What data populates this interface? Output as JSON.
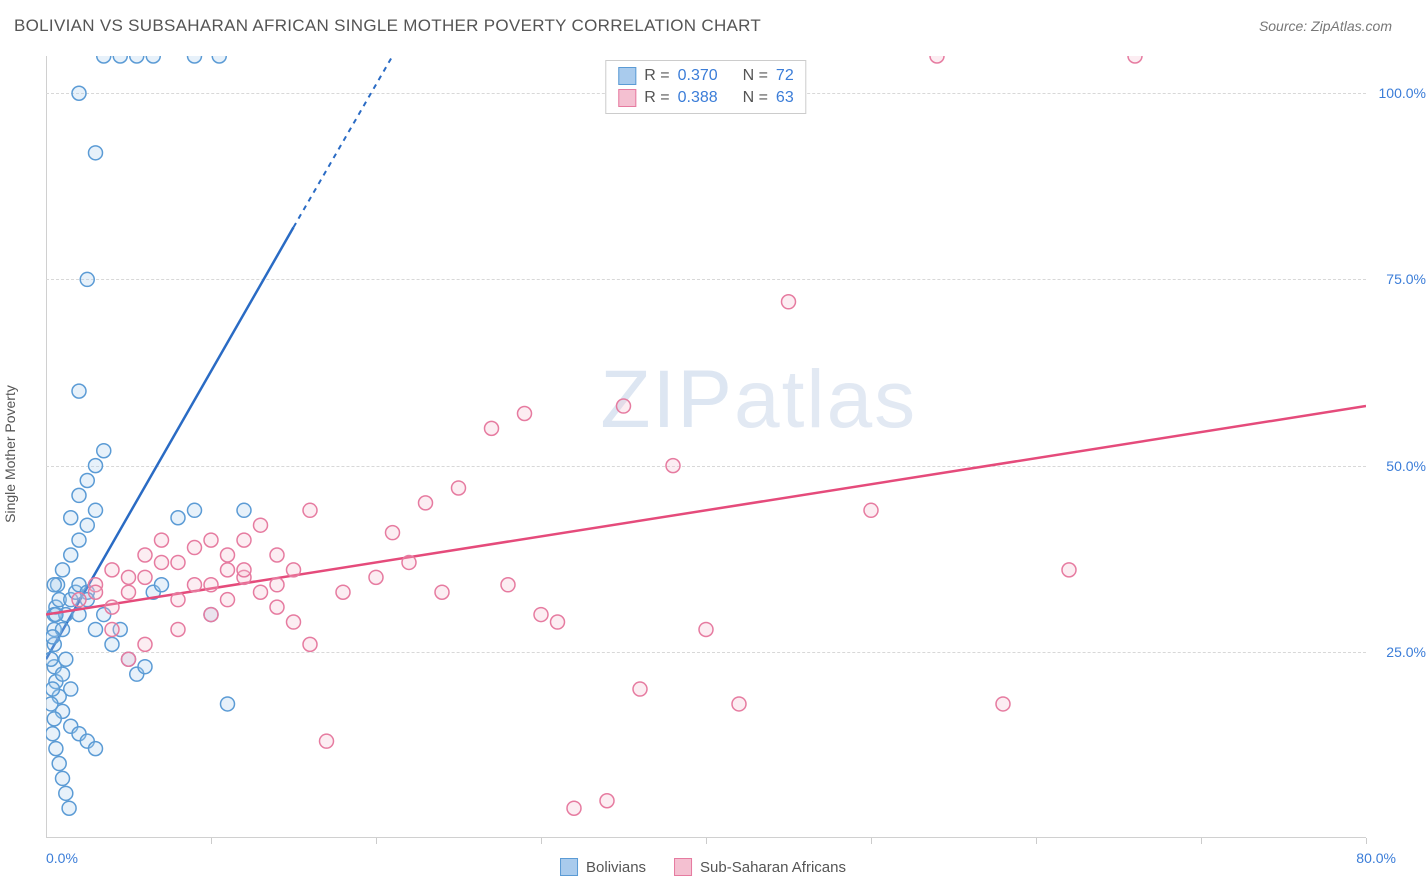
{
  "title": "BOLIVIAN VS SUBSAHARAN AFRICAN SINGLE MOTHER POVERTY CORRELATION CHART",
  "source": "Source: ZipAtlas.com",
  "y_axis_label": "Single Mother Poverty",
  "watermark_bold": "ZIP",
  "watermark_light": "atlas",
  "chart": {
    "type": "scatter",
    "xlim": [
      0,
      80
    ],
    "ylim": [
      0,
      105
    ],
    "x_start_label": "0.0%",
    "x_end_label": "80.0%",
    "y_ticks": [
      {
        "v": 25,
        "label": "25.0%"
      },
      {
        "v": 50,
        "label": "50.0%"
      },
      {
        "v": 75,
        "label": "75.0%"
      },
      {
        "v": 100,
        "label": "100.0%"
      }
    ],
    "x_tick_positions": [
      10,
      20,
      30,
      40,
      50,
      60,
      70,
      80
    ],
    "grid_color": "#d8d8d8",
    "background_color": "#ffffff",
    "marker_radius": 7,
    "marker_stroke_width": 1.5,
    "marker_fill_opacity": 0.28,
    "trendline_width": 2.5,
    "series": [
      {
        "name": "Bolivians",
        "color_stroke": "#5b9bd5",
        "color_fill": "#a9cbed",
        "trend_color": "#2a6bc4",
        "R": "0.370",
        "N": "72",
        "trend": {
          "x1": 0,
          "y1": 24,
          "x2_solid": 15,
          "y2_solid": 82,
          "x2_dash": 21,
          "y2_dash": 105
        },
        "points": [
          [
            0.5,
            28
          ],
          [
            0.6,
            31
          ],
          [
            0.8,
            32
          ],
          [
            0.5,
            30
          ],
          [
            0.7,
            34
          ],
          [
            0.5,
            26
          ],
          [
            0.5,
            23
          ],
          [
            0.6,
            21
          ],
          [
            1.0,
            22
          ],
          [
            1.2,
            24
          ],
          [
            1.5,
            20
          ],
          [
            0.8,
            19
          ],
          [
            1.0,
            17
          ],
          [
            1.5,
            15
          ],
          [
            2.0,
            14
          ],
          [
            2.5,
            13
          ],
          [
            3.0,
            12
          ],
          [
            1.0,
            28
          ],
          [
            1.2,
            30
          ],
          [
            1.5,
            32
          ],
          [
            1.8,
            33
          ],
          [
            2.0,
            34
          ],
          [
            2.5,
            33
          ],
          [
            1.0,
            36
          ],
          [
            1.5,
            38
          ],
          [
            2.0,
            40
          ],
          [
            2.5,
            42
          ],
          [
            3.0,
            44
          ],
          [
            1.5,
            43
          ],
          [
            2.0,
            46
          ],
          [
            2.5,
            48
          ],
          [
            3.0,
            50
          ],
          [
            3.5,
            52
          ],
          [
            2.0,
            30
          ],
          [
            2.5,
            32
          ],
          [
            3.0,
            28
          ],
          [
            3.5,
            30
          ],
          [
            4.0,
            26
          ],
          [
            4.5,
            28
          ],
          [
            5.0,
            24
          ],
          [
            5.5,
            22
          ],
          [
            6.0,
            23
          ],
          [
            6.5,
            33
          ],
          [
            7.0,
            34
          ],
          [
            8.0,
            43
          ],
          [
            9.0,
            44
          ],
          [
            10.0,
            30
          ],
          [
            11.0,
            18
          ],
          [
            12.0,
            44
          ],
          [
            2.0,
            60
          ],
          [
            2.5,
            75
          ],
          [
            3.0,
            92
          ],
          [
            2.0,
            100
          ],
          [
            3.5,
            105
          ],
          [
            4.5,
            105
          ],
          [
            5.5,
            105
          ],
          [
            6.5,
            105
          ],
          [
            9.0,
            105
          ],
          [
            10.5,
            105
          ],
          [
            0.3,
            24
          ],
          [
            0.4,
            27
          ],
          [
            0.5,
            34
          ],
          [
            0.6,
            30
          ],
          [
            0.4,
            20
          ],
          [
            0.3,
            18
          ],
          [
            0.5,
            16
          ],
          [
            0.4,
            14
          ],
          [
            0.6,
            12
          ],
          [
            0.8,
            10
          ],
          [
            1.0,
            8
          ],
          [
            1.2,
            6
          ],
          [
            1.4,
            4
          ]
        ]
      },
      {
        "name": "Sub-Saharan Africans",
        "color_stroke": "#e67ba0",
        "color_fill": "#f4c0d1",
        "trend_color": "#e54b7b",
        "R": "0.388",
        "N": "63",
        "trend": {
          "x1": 0,
          "y1": 30,
          "x2_solid": 80,
          "y2_solid": 58,
          "x2_dash": 80,
          "y2_dash": 58
        },
        "points": [
          [
            2,
            32
          ],
          [
            3,
            34
          ],
          [
            4,
            36
          ],
          [
            5,
            33
          ],
          [
            6,
            35
          ],
          [
            7,
            37
          ],
          [
            8,
            32
          ],
          [
            9,
            34
          ],
          [
            10,
            40
          ],
          [
            11,
            38
          ],
          [
            12,
            35
          ],
          [
            13,
            33
          ],
          [
            14,
            31
          ],
          [
            15,
            29
          ],
          [
            16,
            26
          ],
          [
            17,
            13
          ],
          [
            4,
            28
          ],
          [
            5,
            24
          ],
          [
            6,
            26
          ],
          [
            8,
            28
          ],
          [
            10,
            30
          ],
          [
            11,
            32
          ],
          [
            12,
            36
          ],
          [
            14,
            38
          ],
          [
            16,
            44
          ],
          [
            18,
            33
          ],
          [
            20,
            35
          ],
          [
            21,
            41
          ],
          [
            22,
            37
          ],
          [
            23,
            45
          ],
          [
            24,
            33
          ],
          [
            25,
            47
          ],
          [
            27,
            55
          ],
          [
            28,
            34
          ],
          [
            29,
            57
          ],
          [
            30,
            30
          ],
          [
            31,
            29
          ],
          [
            32,
            4
          ],
          [
            34,
            5
          ],
          [
            35,
            58
          ],
          [
            36,
            20
          ],
          [
            38,
            50
          ],
          [
            40,
            28
          ],
          [
            42,
            18
          ],
          [
            45,
            72
          ],
          [
            50,
            44
          ],
          [
            54,
            105
          ],
          [
            58,
            18
          ],
          [
            62,
            36
          ],
          [
            66,
            105
          ],
          [
            3,
            33
          ],
          [
            4,
            31
          ],
          [
            5,
            35
          ],
          [
            6,
            38
          ],
          [
            7,
            40
          ],
          [
            8,
            37
          ],
          [
            9,
            39
          ],
          [
            10,
            34
          ],
          [
            11,
            36
          ],
          [
            12,
            40
          ],
          [
            13,
            42
          ],
          [
            14,
            34
          ],
          [
            15,
            36
          ]
        ]
      }
    ]
  },
  "legend_r_label": "R =",
  "legend_n_label": "N ="
}
